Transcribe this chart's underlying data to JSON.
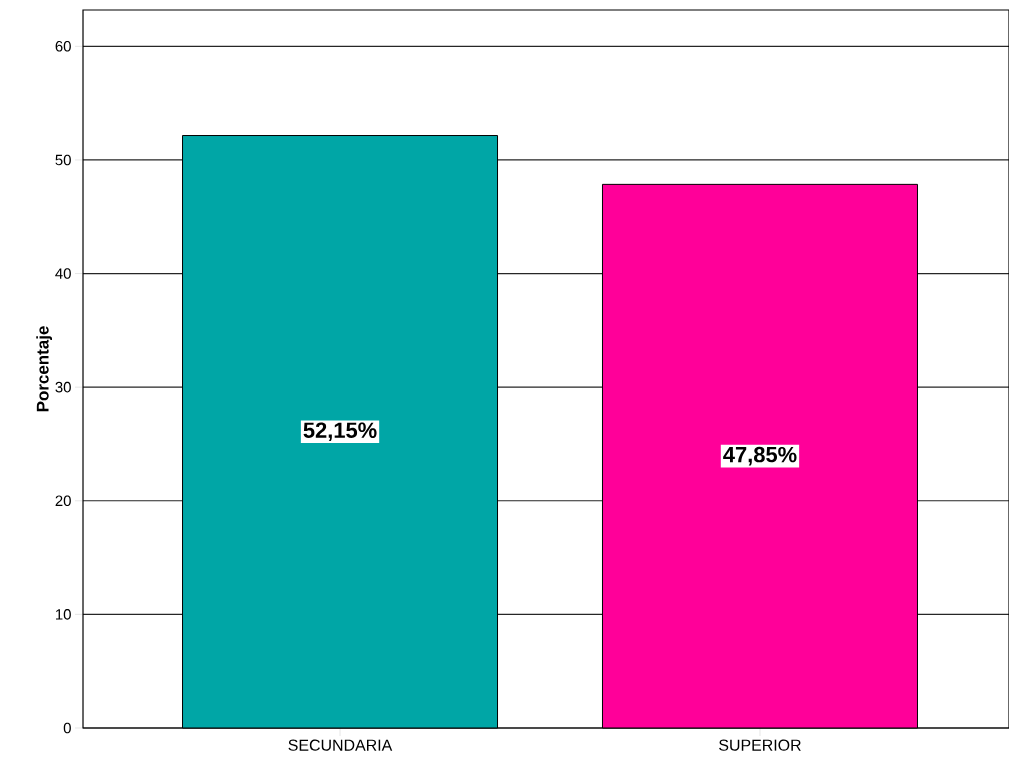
{
  "chart_data": {
    "type": "bar",
    "ylabel": "Porcentaje",
    "categories": [
      "SECUNDARIA",
      "SUPERIOR"
    ],
    "values": [
      52.15,
      47.85
    ],
    "colors": [
      "#00a6a6",
      "#ff0099"
    ],
    "value_labels": [
      "52,15%",
      "47,85%"
    ],
    "ylim": [
      0,
      63.2
    ],
    "yticks": [
      0,
      10,
      20,
      30,
      40,
      50,
      60
    ],
    "grid": "y"
  }
}
